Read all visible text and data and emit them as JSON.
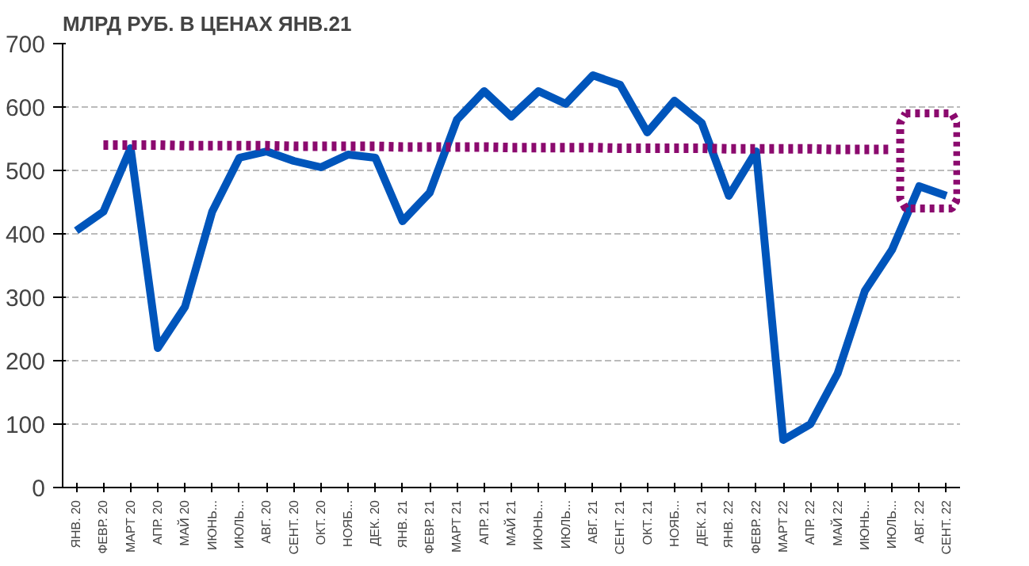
{
  "chart_data": {
    "type": "line",
    "title": "МЛРД РУБ. В ЦЕНАХ ЯНВ.21",
    "categories": [
      "ЯНВ. 20",
      "ФЕВР. 20",
      "МАРТ 20",
      "АПР. 20",
      "МАЙ 20",
      "ИЮНЬ...",
      "ИЮЛЬ...",
      "АВГ. 20",
      "СЕНТ. 20",
      "ОКТ. 20",
      "НОЯБ...",
      "ДЕК. 20",
      "ЯНВ. 21",
      "ФЕВР. 21",
      "МАРТ 21",
      "АПР. 21",
      "МАЙ 21",
      "ИЮНЬ...",
      "ИЮЛЬ...",
      "АВГ. 21",
      "СЕНТ. 21",
      "ОКТ. 21",
      "НОЯБ...",
      "ДЕК. 21",
      "ЯНВ. 22",
      "ФЕВР. 22",
      "МАРТ 22",
      "АПР. 22",
      "МАЙ 22",
      "ИЮНЬ...",
      "ИЮЛЬ...",
      "АВГ. 22",
      "СЕНТ. 22"
    ],
    "series": [
      {
        "color": "#0055bb",
        "line_style": "solid",
        "values": [
          405,
          435,
          535,
          220,
          285,
          435,
          520,
          530,
          515,
          505,
          525,
          520,
          420,
          465,
          580,
          625,
          585,
          625,
          605,
          650,
          635,
          560,
          610,
          575,
          460,
          530,
          75,
          100,
          180,
          310,
          375,
          475,
          460
        ]
      },
      {
        "type": "line",
        "color": "#8b0a6e",
        "line_style": "dotted",
        "values": [
          null,
          540,
          540,
          540,
          539,
          539,
          539,
          539,
          538,
          538,
          538,
          538,
          537,
          537,
          537,
          537,
          536,
          536,
          536,
          536,
          535,
          535,
          535,
          535,
          534,
          534,
          534,
          534,
          533,
          533,
          533,
          null,
          null
        ]
      }
    ],
    "ylim": [
      0,
      700
    ],
    "yticks": [
      0,
      100,
      200,
      300,
      400,
      500,
      600,
      700
    ],
    "grid": "y",
    "marker": "none"
  }
}
